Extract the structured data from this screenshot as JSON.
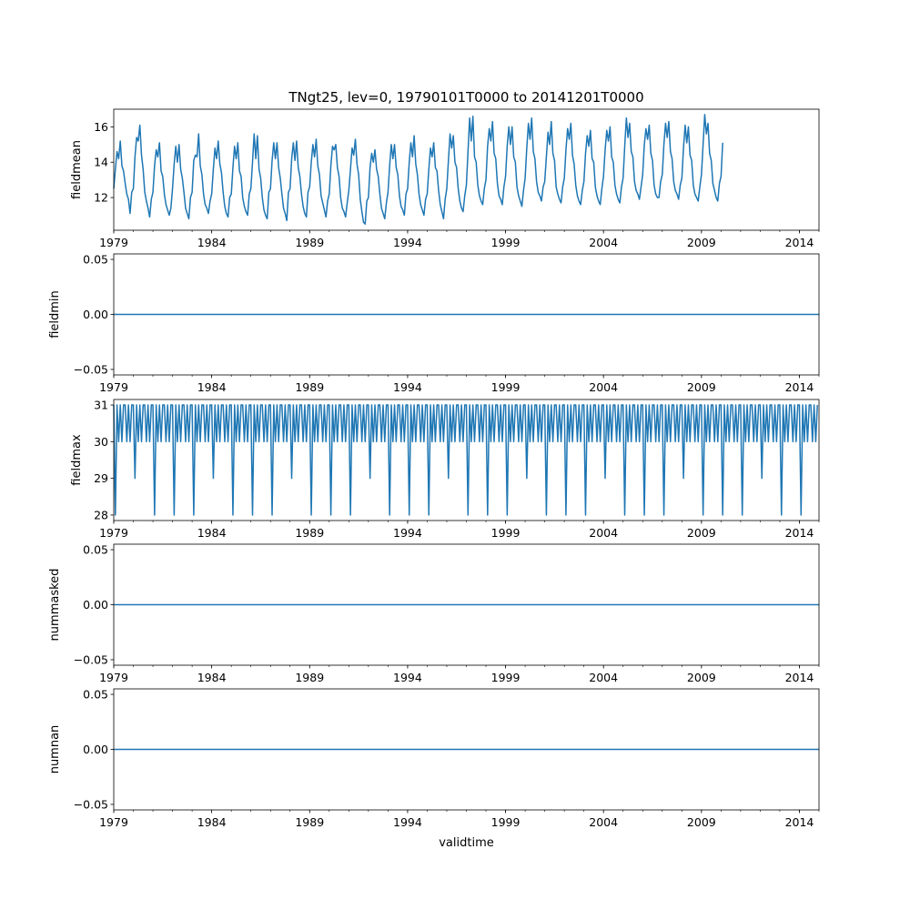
{
  "figure": {
    "title": "TNgt25, lev=0, 19790101T0000 to 20141201T0000",
    "xlabel": "validtime",
    "line_color": "#1f77b4"
  },
  "chart_data": [
    {
      "type": "line",
      "name": "fieldmean",
      "ylabel": "fieldmean",
      "x_range": [
        1979.0,
        2015.0
      ],
      "ylim": [
        10.15,
        17.0
      ],
      "yticks": [
        12,
        14,
        16
      ],
      "ytick_labels": [
        "12",
        "14",
        "16"
      ],
      "x_start": 1979.0,
      "x_step_months": 1,
      "values": [
        12.5,
        13.6,
        14.6,
        14.2,
        15.2,
        13.8,
        13.5,
        12.8,
        12.2,
        11.9,
        11.1,
        12.3,
        12.5,
        14.3,
        15.4,
        15.2,
        16.1,
        14.4,
        13.6,
        12.3,
        11.8,
        11.4,
        10.9,
        11.9,
        12.3,
        13.8,
        14.7,
        14.3,
        15.1,
        13.5,
        13.2,
        12.2,
        11.6,
        11.3,
        11.0,
        11.4,
        12.5,
        13.9,
        14.9,
        14.0,
        15.0,
        13.6,
        13.1,
        12.3,
        11.4,
        11.1,
        10.8,
        12.0,
        12.3,
        14.1,
        14.4,
        14.3,
        15.6,
        13.8,
        13.3,
        12.2,
        11.6,
        11.4,
        11.1,
        11.8,
        12.2,
        13.6,
        14.8,
        14.2,
        15.2,
        13.9,
        13.4,
        12.3,
        11.5,
        11.1,
        10.9,
        12.0,
        12.2,
        13.7,
        14.9,
        14.2,
        15.1,
        13.5,
        13.2,
        12.0,
        11.5,
        11.2,
        11.0,
        12.2,
        12.5,
        14.0,
        15.6,
        14.2,
        15.5,
        13.6,
        13.1,
        12.0,
        11.3,
        11.0,
        10.8,
        12.3,
        12.5,
        14.1,
        15.1,
        14.2,
        15.1,
        13.7,
        13.1,
        12.2,
        11.4,
        11.1,
        10.7,
        12.3,
        12.5,
        14.2,
        15.1,
        14.1,
        15.2,
        13.7,
        13.2,
        12.2,
        11.5,
        11.1,
        10.9,
        12.3,
        12.6,
        14.0,
        15.0,
        14.3,
        15.3,
        13.8,
        13.3,
        12.1,
        11.7,
        11.3,
        10.9,
        11.8,
        12.2,
        13.8,
        14.9,
        14.7,
        15.0,
        13.7,
        13.2,
        12.0,
        11.4,
        11.2,
        10.9,
        11.7,
        12.4,
        13.6,
        14.8,
        14.4,
        15.3,
        13.9,
        13.3,
        11.9,
        11.2,
        10.6,
        10.5,
        11.8,
        12.0,
        13.7,
        14.5,
        14.0,
        14.7,
        13.6,
        13.2,
        12.2,
        11.4,
        11.1,
        10.8,
        11.7,
        12.3,
        13.8,
        15.0,
        14.2,
        15.0,
        13.7,
        13.3,
        12.1,
        11.5,
        11.3,
        11.0,
        12.2,
        12.5,
        14.0,
        15.1,
        14.3,
        15.5,
        13.9,
        13.3,
        12.2,
        11.6,
        11.3,
        11.0,
        11.9,
        12.2,
        13.6,
        14.8,
        14.3,
        15.1,
        13.7,
        13.5,
        12.4,
        11.6,
        11.2,
        10.8,
        11.9,
        12.5,
        14.1,
        15.6,
        14.8,
        15.5,
        14.0,
        13.7,
        12.5,
        11.8,
        11.4,
        11.2,
        12.1,
        12.7,
        14.6,
        16.5,
        15.2,
        16.6,
        14.3,
        14.0,
        12.7,
        12.1,
        11.8,
        11.6,
        12.5,
        13.0,
        14.9,
        15.9,
        15.2,
        16.3,
        14.5,
        14.2,
        12.8,
        12.1,
        11.9,
        11.6,
        12.6,
        13.2,
        14.9,
        16.0,
        15.0,
        16.0,
        14.3,
        14.0,
        12.6,
        12.1,
        11.8,
        11.5,
        12.4,
        13.1,
        14.8,
        16.2,
        15.3,
        16.5,
        14.6,
        14.2,
        12.9,
        12.3,
        12.1,
        11.8,
        12.6,
        12.9,
        14.3,
        15.7,
        15.0,
        16.3,
        14.5,
        14.1,
        12.6,
        12.2,
        11.9,
        11.7,
        12.6,
        13.1,
        14.7,
        15.9,
        15.3,
        16.2,
        14.4,
        13.9,
        12.7,
        12.1,
        11.8,
        11.6,
        12.4,
        12.9,
        14.5,
        15.5,
        14.9,
        15.8,
        14.2,
        14.0,
        12.6,
        12.1,
        11.8,
        11.6,
        12.5,
        13.2,
        14.7,
        15.8,
        15.2,
        16.0,
        14.3,
        14.0,
        12.7,
        12.2,
        11.9,
        11.7,
        12.6,
        13.1,
        14.9,
        16.5,
        15.4,
        16.2,
        14.6,
        14.3,
        12.9,
        12.4,
        12.2,
        11.9,
        12.6,
        13.3,
        15.0,
        15.9,
        15.3,
        16.1,
        14.5,
        14.1,
        12.7,
        12.2,
        12.0,
        12.0,
        12.9,
        13.3,
        15.0,
        16.2,
        15.4,
        16.3,
        14.6,
        14.2,
        12.9,
        12.4,
        12.2,
        11.9,
        12.7,
        13.1,
        14.8,
        16.1,
        15.1,
        16.0,
        14.4,
        14.1,
        12.7,
        12.2,
        12.0,
        11.8,
        12.6,
        13.3,
        15.0,
        16.7,
        15.6,
        16.2,
        14.5,
        14.1,
        12.8,
        12.4,
        12.0,
        11.8,
        12.8,
        13.2,
        15.1
      ]
    },
    {
      "type": "line",
      "name": "fieldmin",
      "ylabel": "fieldmin",
      "x_range": [
        1979.0,
        2015.0
      ],
      "ylim": [
        -0.055,
        0.055
      ],
      "yticks": [
        -0.05,
        0.0,
        0.05
      ],
      "ytick_labels": [
        "−0.05",
        "0.00",
        "0.05"
      ],
      "constant_value": 0.0
    },
    {
      "type": "line",
      "name": "fieldmax",
      "ylabel": "fieldmax",
      "x_range": [
        1979.0,
        2015.0
      ],
      "ylim": [
        27.85,
        31.15
      ],
      "yticks": [
        28,
        29,
        30,
        31
      ],
      "ytick_labels": [
        "28",
        "29",
        "30",
        "31"
      ],
      "x_start": 1979.0,
      "x_step_months": 1,
      "pattern": [
        31,
        28,
        31,
        30,
        31,
        30,
        31,
        31,
        30,
        31,
        30,
        31
      ],
      "leap_feb_value": 29
    },
    {
      "type": "line",
      "name": "nummasked",
      "ylabel": "nummasked",
      "x_range": [
        1979.0,
        2015.0
      ],
      "ylim": [
        -0.055,
        0.055
      ],
      "yticks": [
        -0.05,
        0.0,
        0.05
      ],
      "ytick_labels": [
        "−0.05",
        "0.00",
        "0.05"
      ],
      "constant_value": 0.0
    },
    {
      "type": "line",
      "name": "numnan",
      "ylabel": "numnan",
      "x_range": [
        1979.0,
        2015.0
      ],
      "ylim": [
        -0.055,
        0.055
      ],
      "yticks": [
        -0.05,
        0.0,
        0.05
      ],
      "ytick_labels": [
        "−0.05",
        "0.00",
        "0.05"
      ],
      "constant_value": 0.0
    }
  ],
  "x_axis": {
    "major_ticks": [
      1979,
      1984,
      1989,
      1994,
      1999,
      2004,
      2009,
      2014
    ],
    "major_labels": [
      "1979",
      "1984",
      "1989",
      "1994",
      "1999",
      "2004",
      "2009",
      "2014"
    ]
  }
}
